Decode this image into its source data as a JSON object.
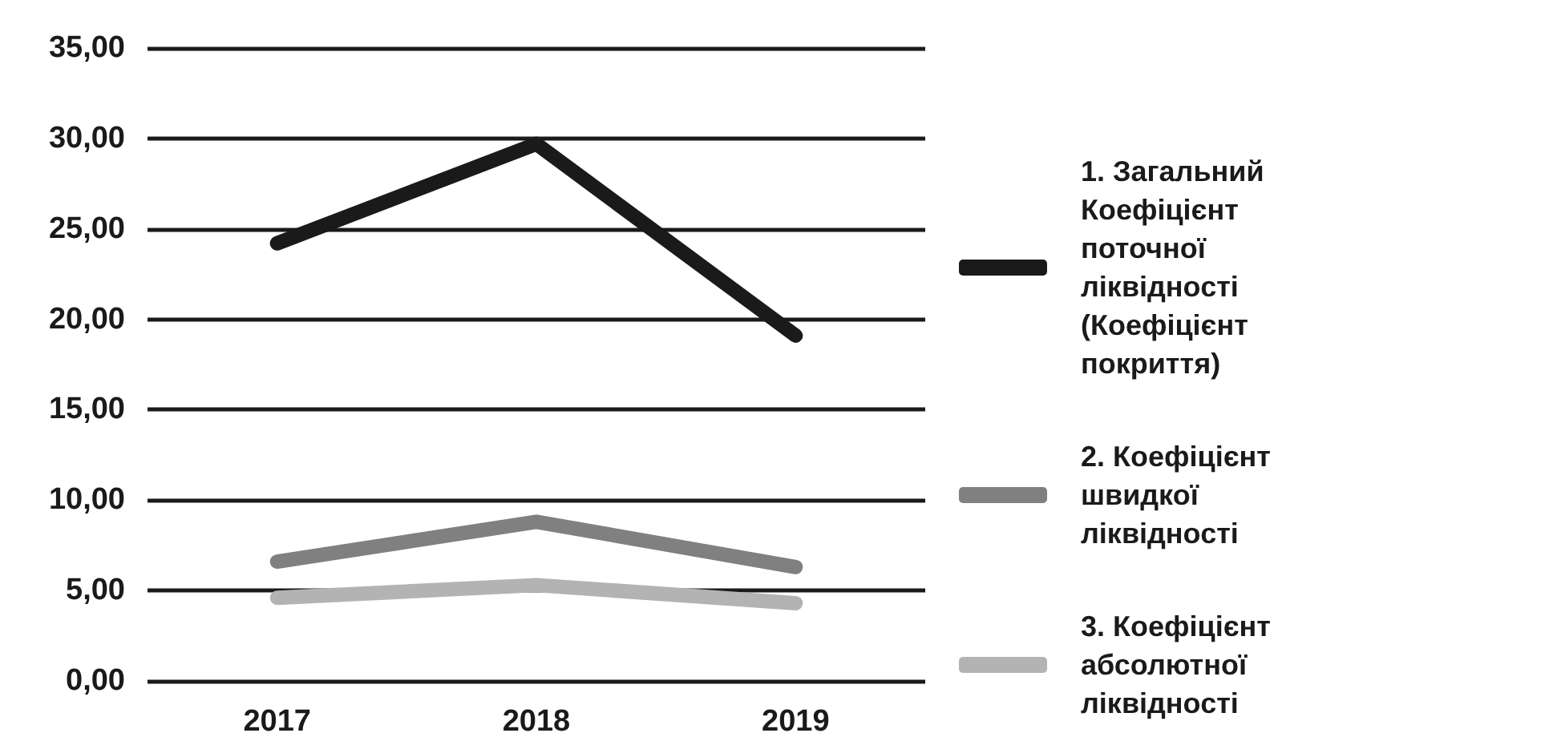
{
  "chart_data": {
    "type": "line",
    "categories": [
      "2017",
      "2018",
      "2019"
    ],
    "series": [
      {
        "name": "1. Загальний Коефіцієнт поточної ліквідності (Коефіцієнт покриття)",
        "color": "#1a1a1a",
        "values": [
          24.2,
          29.7,
          19.1
        ]
      },
      {
        "name": "2. Коефіцієнт швидкої ліквідності",
        "color": "#808080",
        "values": [
          6.6,
          8.8,
          6.3
        ]
      },
      {
        "name": "3. Коефіцієнт абсолютної ліквідності",
        "color": "#b3b3b3",
        "values": [
          4.6,
          5.3,
          4.3
        ]
      }
    ],
    "ylim": [
      0,
      35
    ],
    "yticks": [
      {
        "value": 0,
        "label": "0,00"
      },
      {
        "value": 5,
        "label": "5,00"
      },
      {
        "value": 10,
        "label": "10,00"
      },
      {
        "value": 15,
        "label": "15,00"
      },
      {
        "value": 20,
        "label": "20,00"
      },
      {
        "value": 25,
        "label": "25,00"
      },
      {
        "value": 30,
        "label": "30,00"
      },
      {
        "value": 35,
        "label": "35,00"
      }
    ],
    "grid": "y",
    "legend": "right",
    "marker": "none",
    "line_style": "solid"
  }
}
